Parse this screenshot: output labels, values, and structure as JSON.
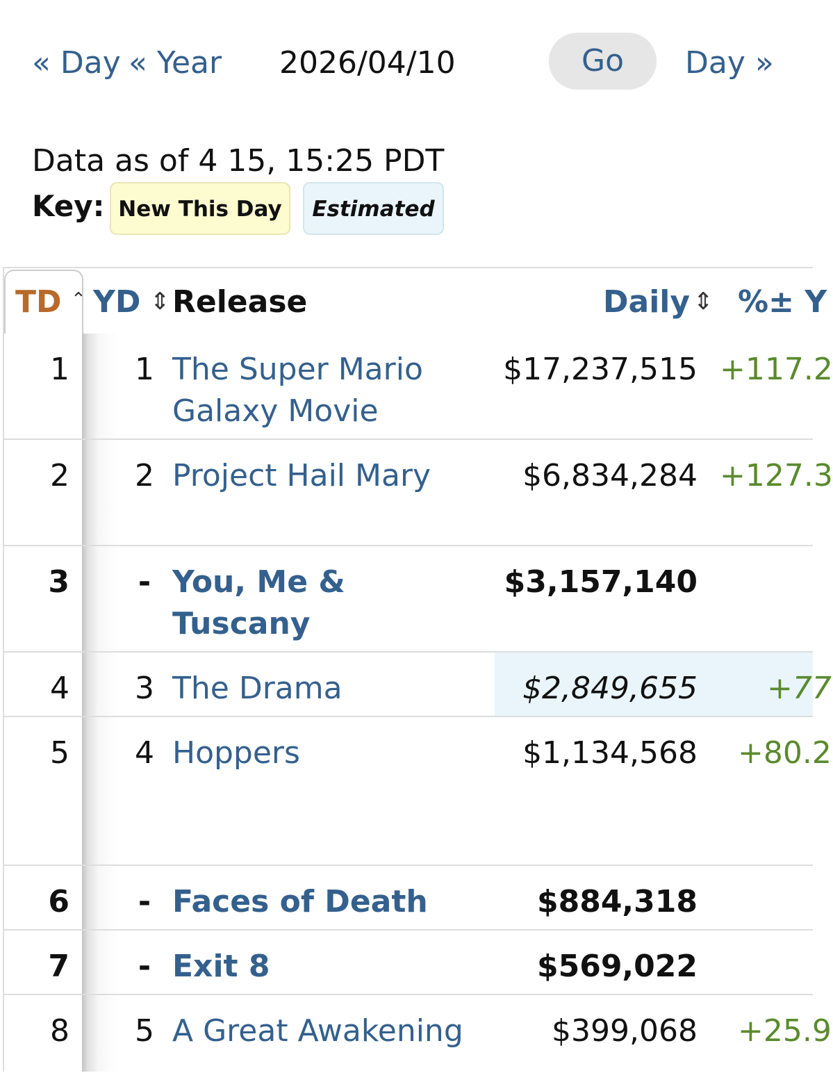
{
  "nav": {
    "prev_day": "« Day",
    "prev_year": "« Year",
    "date_value": "2026/04/10",
    "go": "Go",
    "next_day": "Day »"
  },
  "as_of": "Data as of 4 15, 15:25 PDT",
  "key": {
    "label": "Key:",
    "new_this_day": "New This Day",
    "estimated": "Estimated"
  },
  "table": {
    "headers": {
      "td": "TD",
      "yd": "YD",
      "release": "Release",
      "daily": "Daily",
      "pct": "%± Y"
    },
    "rows": [
      {
        "td": "1",
        "yd": "1",
        "title": "The Super Mario Galaxy Movie",
        "daily": "$17,237,515",
        "pct": "+117.2",
        "new": false,
        "estimated": false
      },
      {
        "td": "2",
        "yd": "2",
        "title": "Project Hail Mary",
        "daily": "$6,834,284",
        "pct": "+127.3",
        "new": false,
        "estimated": false
      },
      {
        "td": "3",
        "yd": "-",
        "title": "You, Me & Tuscany",
        "daily": "$3,157,140",
        "pct": "",
        "new": true,
        "estimated": false
      },
      {
        "td": "4",
        "yd": "3",
        "title": "The Drama",
        "daily": "$2,849,655",
        "pct": "+77",
        "new": false,
        "estimated": true
      },
      {
        "td": "5",
        "yd": "4",
        "title": "Hoppers",
        "daily": "$1,134,568",
        "pct": "+80.2",
        "new": false,
        "estimated": false
      },
      {
        "td": "6",
        "yd": "-",
        "title": "Faces of Death",
        "daily": "$884,318",
        "pct": "",
        "new": true,
        "estimated": false
      },
      {
        "td": "7",
        "yd": "-",
        "title": "Exit 8",
        "daily": "$569,022",
        "pct": "",
        "new": true,
        "estimated": false
      },
      {
        "td": "8",
        "yd": "5",
        "title": "A Great Awakening",
        "daily": "$399,068",
        "pct": "+25.9",
        "new": false,
        "estimated": false
      }
    ]
  }
}
